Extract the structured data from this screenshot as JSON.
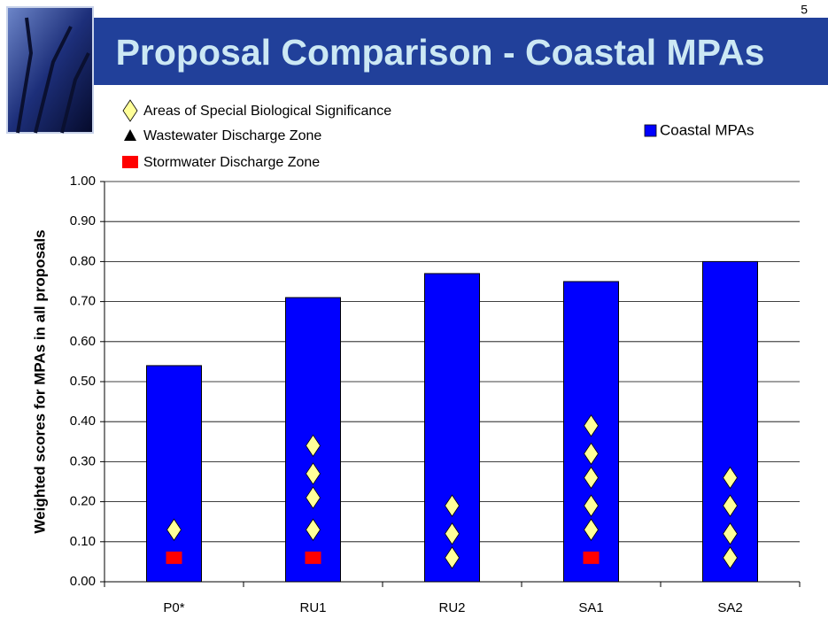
{
  "slide_number": "5",
  "chart_data": {
    "type": "bar",
    "title": "Proposal Comparison - Coastal MPAs",
    "y_label": "Weighted scores for MPAs in all proposals",
    "categories": [
      "P0*",
      "RU1",
      "RU2",
      "SA1",
      "SA2"
    ],
    "series": [
      {
        "name": "Coastal MPAs",
        "color": "#0000ff",
        "values": [
          0.54,
          0.71,
          0.77,
          0.75,
          0.8
        ]
      }
    ],
    "markers": [
      {
        "name": "Areas of Special Biological Significance",
        "shape": "diamond",
        "color": "#ffff99",
        "values": [
          [
            0.13
          ],
          [
            0.13,
            0.21,
            0.27,
            0.34
          ],
          [
            0.06,
            0.12,
            0.19
          ],
          [
            0.13,
            0.19,
            0.26,
            0.32,
            0.39
          ],
          [
            0.06,
            0.12,
            0.19,
            0.26
          ]
        ]
      },
      {
        "name": "Wastewater Discharge Zone",
        "shape": "triangle",
        "color": "#000000",
        "values": [
          [],
          [],
          [],
          [],
          []
        ]
      },
      {
        "name": "Stormwater Discharge Zone",
        "shape": "square",
        "color": "#ff0000",
        "values": [
          [
            0.06
          ],
          [
            0.06
          ],
          [],
          [
            0.06
          ],
          []
        ]
      }
    ],
    "ylim": [
      0,
      1
    ],
    "yticks": [
      {
        "value": 0,
        "label": "0.00"
      },
      {
        "value": 0.1,
        "label": "0.10"
      },
      {
        "value": 0.2,
        "label": "0.20"
      },
      {
        "value": 0.3,
        "label": "0.30"
      },
      {
        "value": 0.4,
        "label": "0.40"
      },
      {
        "value": 0.5,
        "label": "0.50"
      },
      {
        "value": 0.6,
        "label": "0.60"
      },
      {
        "value": 0.7,
        "label": "0.70"
      },
      {
        "value": 0.8,
        "label": "0.80"
      },
      {
        "value": 0.9,
        "label": "0.90"
      },
      {
        "value": 1,
        "label": "1.00"
      }
    ],
    "grid": true
  }
}
